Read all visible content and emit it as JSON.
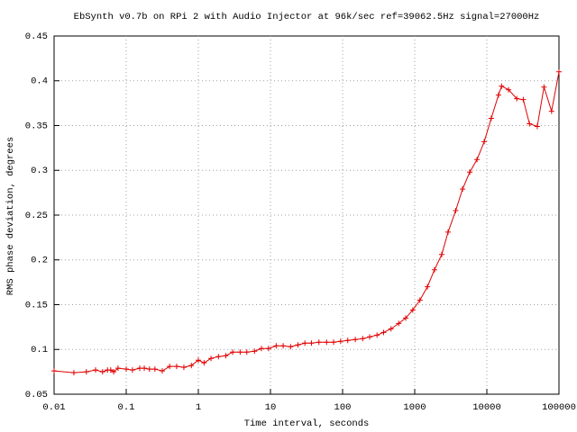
{
  "chart_data": {
    "type": "line",
    "title": "EbSynth v0.7b on RPi 2 with Audio Injector at 96k/sec ref=39062.5Hz signal=27000Hz",
    "x_label": "Time interval, seconds",
    "y_label": "RMS phase deviation, degrees",
    "x_scale": "log",
    "grid": true,
    "xlim": [
      0.01,
      100000
    ],
    "ylim": [
      0.05,
      0.45
    ],
    "xticks": [
      0.01,
      0.1,
      1,
      10,
      100,
      1000,
      10000,
      100000
    ],
    "yticks": [
      0.05,
      0.1,
      0.15,
      0.2,
      0.25,
      0.3,
      0.35,
      0.4,
      0.45
    ],
    "series": [
      {
        "color": "#e00000",
        "x": [
          0.01,
          0.0188,
          0.028,
          0.0376,
          0.047,
          0.055,
          0.061,
          0.067,
          0.077,
          0.1,
          0.122,
          0.154,
          0.178,
          0.21,
          0.25,
          0.316,
          0.4,
          0.5,
          0.63,
          0.8,
          1.0,
          1.2,
          1.5,
          1.9,
          2.4,
          3.0,
          3.8,
          4.7,
          6.0,
          7.5,
          9.4,
          12,
          15,
          19,
          24,
          30,
          37,
          47,
          60,
          75,
          94,
          118,
          150,
          190,
          237,
          300,
          370,
          470,
          600,
          750,
          940,
          1180,
          1500,
          1880,
          2370,
          2900,
          3700,
          4600,
          5800,
          7300,
          9200,
          11500,
          14500,
          16000,
          20000,
          26000,
          32000,
          39000,
          50000,
          62000,
          79000,
          100000
        ],
        "values": [
          0.076,
          0.074,
          0.075,
          0.077,
          0.075,
          0.077,
          0.077,
          0.075,
          0.079,
          0.078,
          0.077,
          0.079,
          0.079,
          0.078,
          0.078,
          0.076,
          0.081,
          0.081,
          0.08,
          0.082,
          0.088,
          0.085,
          0.09,
          0.092,
          0.093,
          0.097,
          0.097,
          0.097,
          0.098,
          0.101,
          0.101,
          0.104,
          0.104,
          0.103,
          0.105,
          0.107,
          0.107,
          0.108,
          0.108,
          0.108,
          0.109,
          0.11,
          0.111,
          0.112,
          0.114,
          0.116,
          0.119,
          0.123,
          0.129,
          0.135,
          0.144,
          0.155,
          0.17,
          0.189,
          0.206,
          0.231,
          0.255,
          0.279,
          0.298,
          0.312,
          0.332,
          0.358,
          0.384,
          0.394,
          0.39,
          0.38,
          0.379,
          0.352,
          0.349,
          0.393,
          0.366,
          0.41
        ]
      }
    ]
  }
}
